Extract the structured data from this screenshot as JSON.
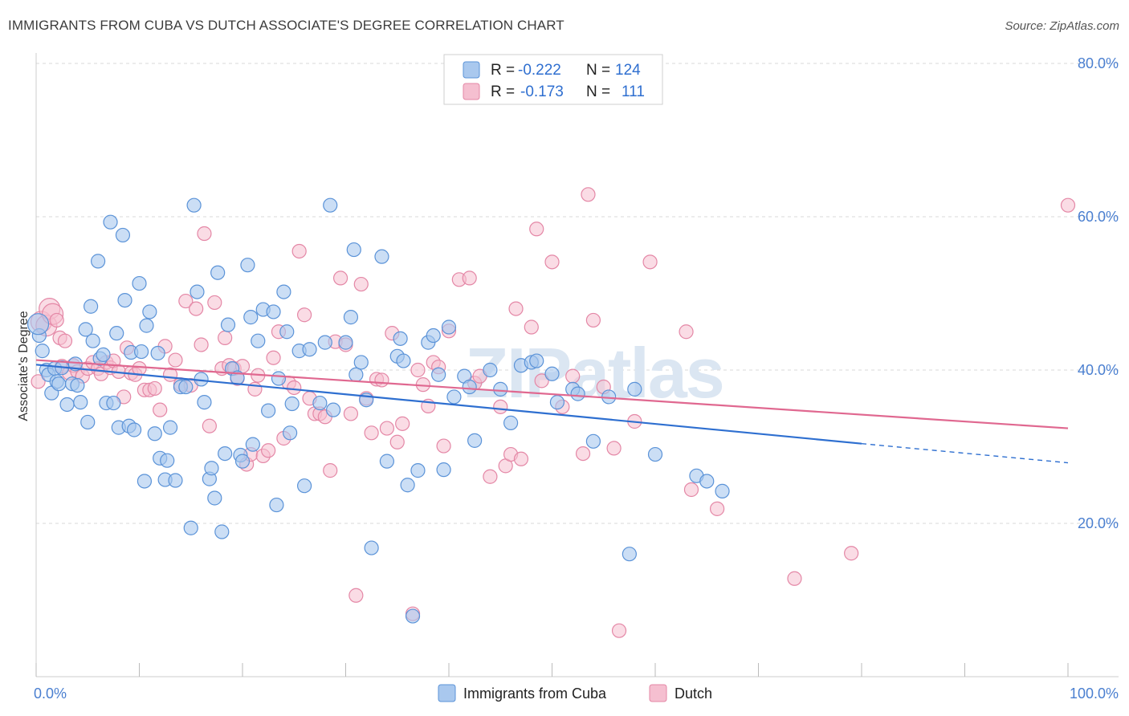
{
  "header": {
    "title": "IMMIGRANTS FROM CUBA VS DUTCH ASSOCIATE'S DEGREE CORRELATION CHART",
    "source": "Source: ZipAtlas.com"
  },
  "watermark": "ZIPatlas",
  "colors": {
    "blue": "#5b93d8",
    "blue_fill": "#a9c8ee",
    "blue_line": "#2e6fd0",
    "pink": "#e487a6",
    "pink_fill": "#f5bfd0",
    "pink_line": "#e06890",
    "tick_text": "#4a7fd0",
    "grid": "#d8d8d8"
  },
  "legend": {
    "rows": [
      {
        "r_label": "R =",
        "r_value": "-0.222",
        "n_label": "N =",
        "n_value": "124"
      },
      {
        "r_label": "R =",
        "r_value": "-0.173",
        "n_label": "N =",
        "n_value": "111"
      }
    ]
  },
  "chart_data": {
    "type": "scatter",
    "title": "IMMIGRANTS FROM CUBA VS DUTCH ASSOCIATE'S DEGREE CORRELATION CHART",
    "xlabel": "",
    "ylabel": "Associate's Degree",
    "xlim": [
      0,
      100
    ],
    "ylim": [
      0,
      80
    ],
    "x_tick_labels": [
      "0.0%",
      "100.0%"
    ],
    "y_ticks": [
      20,
      40,
      60,
      80
    ],
    "y_tick_labels": [
      "20.0%",
      "40.0%",
      "60.0%",
      "80.0%"
    ],
    "grid": true,
    "series": [
      {
        "name": "Immigrants from Cuba",
        "R": -0.222,
        "N": 124,
        "trend": {
          "x0": 0,
          "y0": 40.7,
          "x1": 80,
          "y1": 30.4,
          "dash_to_x": 100,
          "dash_to_y": 27.9
        },
        "points": [
          [
            0.3,
            44.5
          ],
          [
            0.6,
            42.5
          ],
          [
            1.0,
            40.0
          ],
          [
            1.2,
            39.4
          ],
          [
            1.5,
            37.0
          ],
          [
            1.8,
            40.2
          ],
          [
            2.0,
            38.5
          ],
          [
            2.2,
            38.2
          ],
          [
            2.5,
            40.3
          ],
          [
            3.0,
            35.5
          ],
          [
            3.5,
            38.2
          ],
          [
            3.8,
            40.8
          ],
          [
            4.0,
            38.0
          ],
          [
            4.3,
            35.8
          ],
          [
            4.8,
            45.3
          ],
          [
            5.0,
            33.2
          ],
          [
            5.3,
            48.3
          ],
          [
            5.5,
            43.8
          ],
          [
            6.0,
            54.2
          ],
          [
            6.2,
            41.5
          ],
          [
            6.5,
            42.0
          ],
          [
            6.8,
            35.7
          ],
          [
            7.2,
            59.3
          ],
          [
            7.5,
            35.7
          ],
          [
            7.8,
            44.8
          ],
          [
            8.0,
            32.5
          ],
          [
            8.4,
            57.6
          ],
          [
            8.6,
            49.1
          ],
          [
            9.0,
            32.7
          ],
          [
            9.2,
            42.3
          ],
          [
            9.5,
            32.2
          ],
          [
            10.0,
            51.3
          ],
          [
            10.2,
            42.4
          ],
          [
            10.5,
            25.5
          ],
          [
            10.7,
            45.8
          ],
          [
            11.0,
            47.6
          ],
          [
            11.5,
            31.7
          ],
          [
            11.8,
            42.2
          ],
          [
            12.0,
            28.5
          ],
          [
            12.5,
            25.7
          ],
          [
            12.7,
            28.2
          ],
          [
            13.0,
            32.5
          ],
          [
            13.5,
            25.6
          ],
          [
            14.0,
            37.8
          ],
          [
            14.5,
            37.8
          ],
          [
            15.0,
            19.4
          ],
          [
            15.3,
            61.5
          ],
          [
            15.6,
            50.2
          ],
          [
            16.0,
            38.8
          ],
          [
            16.3,
            35.8
          ],
          [
            16.8,
            25.8
          ],
          [
            17.0,
            27.2
          ],
          [
            17.3,
            23.3
          ],
          [
            17.6,
            52.7
          ],
          [
            18.0,
            18.9
          ],
          [
            18.3,
            29.1
          ],
          [
            18.6,
            45.9
          ],
          [
            19.0,
            40.2
          ],
          [
            19.5,
            39.0
          ],
          [
            19.8,
            28.9
          ],
          [
            20.0,
            28.1
          ],
          [
            20.5,
            53.7
          ],
          [
            20.8,
            46.9
          ],
          [
            21.0,
            30.3
          ],
          [
            21.5,
            43.8
          ],
          [
            22.0,
            47.9
          ],
          [
            22.5,
            34.7
          ],
          [
            23.0,
            47.6
          ],
          [
            23.3,
            22.4
          ],
          [
            23.5,
            38.9
          ],
          [
            24.0,
            50.2
          ],
          [
            24.3,
            45.0
          ],
          [
            24.6,
            31.8
          ],
          [
            24.8,
            35.6
          ],
          [
            25.5,
            42.5
          ],
          [
            26.0,
            24.9
          ],
          [
            26.5,
            42.7
          ],
          [
            27.5,
            35.7
          ],
          [
            28.0,
            43.6
          ],
          [
            28.5,
            61.5
          ],
          [
            28.8,
            34.8
          ],
          [
            30.0,
            43.6
          ],
          [
            30.5,
            46.9
          ],
          [
            30.8,
            55.7
          ],
          [
            31.0,
            39.4
          ],
          [
            31.5,
            41.0
          ],
          [
            32.0,
            36.1
          ],
          [
            32.5,
            16.8
          ],
          [
            33.5,
            54.8
          ],
          [
            34.0,
            28.1
          ],
          [
            35.0,
            41.8
          ],
          [
            35.3,
            44.1
          ],
          [
            35.6,
            41.2
          ],
          [
            36.0,
            25.0
          ],
          [
            36.5,
            7.9
          ],
          [
            37.0,
            26.9
          ],
          [
            38.0,
            43.6
          ],
          [
            38.5,
            44.5
          ],
          [
            39.0,
            39.4
          ],
          [
            39.5,
            27.0
          ],
          [
            40.0,
            45.6
          ],
          [
            40.5,
            36.5
          ],
          [
            41.5,
            39.2
          ],
          [
            42.0,
            37.8
          ],
          [
            42.5,
            30.8
          ],
          [
            44.0,
            40.0
          ],
          [
            45.0,
            37.5
          ],
          [
            46.0,
            33.1
          ],
          [
            47.0,
            40.6
          ],
          [
            48.0,
            41.0
          ],
          [
            48.5,
            41.2
          ],
          [
            50.0,
            39.5
          ],
          [
            50.5,
            35.8
          ],
          [
            52.0,
            37.5
          ],
          [
            52.5,
            36.9
          ],
          [
            54.0,
            30.7
          ],
          [
            55.5,
            36.5
          ],
          [
            57.5,
            16.0
          ],
          [
            58.0,
            37.5
          ],
          [
            60.0,
            29.0
          ],
          [
            64.0,
            26.2
          ],
          [
            65.0,
            25.5
          ],
          [
            66.5,
            24.2
          ],
          [
            0.2,
            46.0
          ]
        ]
      },
      {
        "name": "Dutch",
        "R": -0.173,
        "N": 111,
        "trend": {
          "x0": 0,
          "y0": 41.3,
          "x1": 100,
          "y1": 32.4
        },
        "points": [
          [
            0.2,
            38.5
          ],
          [
            0.5,
            46.3
          ],
          [
            1.0,
            45.8
          ],
          [
            1.3,
            48.0
          ],
          [
            1.6,
            47.3
          ],
          [
            2.0,
            46.5
          ],
          [
            2.3,
            44.2
          ],
          [
            2.5,
            40.5
          ],
          [
            2.8,
            43.8
          ],
          [
            3.2,
            39.6
          ],
          [
            3.6,
            40.6
          ],
          [
            4.0,
            39.8
          ],
          [
            4.5,
            39.2
          ],
          [
            5.0,
            40.2
          ],
          [
            5.5,
            41.0
          ],
          [
            6.0,
            40.2
          ],
          [
            6.3,
            39.5
          ],
          [
            6.8,
            41.0
          ],
          [
            7.2,
            40.3
          ],
          [
            7.5,
            41.2
          ],
          [
            8.0,
            39.8
          ],
          [
            8.5,
            36.5
          ],
          [
            8.8,
            42.9
          ],
          [
            9.2,
            39.6
          ],
          [
            9.6,
            39.4
          ],
          [
            10.0,
            40.2
          ],
          [
            10.5,
            37.4
          ],
          [
            11.0,
            37.4
          ],
          [
            11.5,
            37.6
          ],
          [
            12.0,
            34.8
          ],
          [
            12.5,
            43.1
          ],
          [
            13.0,
            39.4
          ],
          [
            13.5,
            41.3
          ],
          [
            14.0,
            38.1
          ],
          [
            14.5,
            49.0
          ],
          [
            15.0,
            38.0
          ],
          [
            15.5,
            48.0
          ],
          [
            16.0,
            43.3
          ],
          [
            16.3,
            57.8
          ],
          [
            16.8,
            32.7
          ],
          [
            17.3,
            48.8
          ],
          [
            18.0,
            40.2
          ],
          [
            18.3,
            44.2
          ],
          [
            18.7,
            40.6
          ],
          [
            19.2,
            40.2
          ],
          [
            19.5,
            38.9
          ],
          [
            20.0,
            40.5
          ],
          [
            20.4,
            27.7
          ],
          [
            20.8,
            29.0
          ],
          [
            21.2,
            37.5
          ],
          [
            21.5,
            39.3
          ],
          [
            22.0,
            28.8
          ],
          [
            22.5,
            29.5
          ],
          [
            23.0,
            41.6
          ],
          [
            23.5,
            45.0
          ],
          [
            24.0,
            31.1
          ],
          [
            24.5,
            38.3
          ],
          [
            25.0,
            37.7
          ],
          [
            25.5,
            55.5
          ],
          [
            26.0,
            47.2
          ],
          [
            26.5,
            36.3
          ],
          [
            27.0,
            34.3
          ],
          [
            27.5,
            34.3
          ],
          [
            28.0,
            33.9
          ],
          [
            28.5,
            26.9
          ],
          [
            29.0,
            43.7
          ],
          [
            29.5,
            52.0
          ],
          [
            30.0,
            43.3
          ],
          [
            30.5,
            34.3
          ],
          [
            31.0,
            10.6
          ],
          [
            31.5,
            51.2
          ],
          [
            32.0,
            36.3
          ],
          [
            32.5,
            31.8
          ],
          [
            33.0,
            38.8
          ],
          [
            33.5,
            38.7
          ],
          [
            34.0,
            32.4
          ],
          [
            34.5,
            44.8
          ],
          [
            35.0,
            30.6
          ],
          [
            35.5,
            33.0
          ],
          [
            36.5,
            8.2
          ],
          [
            37.0,
            40.0
          ],
          [
            37.5,
            38.1
          ],
          [
            38.0,
            35.3
          ],
          [
            38.5,
            41.0
          ],
          [
            39.0,
            40.4
          ],
          [
            39.5,
            30.1
          ],
          [
            40.0,
            45.1
          ],
          [
            41.0,
            51.8
          ],
          [
            42.0,
            52.0
          ],
          [
            42.5,
            38.3
          ],
          [
            43.0,
            39.2
          ],
          [
            44.0,
            26.1
          ],
          [
            45.0,
            35.2
          ],
          [
            45.5,
            27.5
          ],
          [
            46.0,
            29.0
          ],
          [
            46.5,
            48.0
          ],
          [
            47.0,
            28.4
          ],
          [
            48.0,
            45.6
          ],
          [
            48.5,
            58.4
          ],
          [
            49.0,
            38.6
          ],
          [
            50.0,
            54.1
          ],
          [
            51.0,
            35.2
          ],
          [
            52.0,
            39.2
          ],
          [
            53.0,
            29.1
          ],
          [
            53.5,
            62.9
          ],
          [
            54.0,
            46.5
          ],
          [
            55.0,
            37.8
          ],
          [
            56.0,
            29.8
          ],
          [
            56.5,
            6.0
          ],
          [
            58.0,
            33.3
          ],
          [
            59.5,
            54.1
          ],
          [
            63.0,
            45.0
          ],
          [
            63.5,
            24.4
          ],
          [
            66.0,
            21.9
          ],
          [
            73.5,
            12.8
          ],
          [
            79.0,
            16.1
          ],
          [
            100.0,
            61.5
          ]
        ]
      }
    ]
  },
  "bottom_legend": {
    "items": [
      {
        "label": "Immigrants from Cuba"
      },
      {
        "label": "Dutch"
      }
    ]
  }
}
